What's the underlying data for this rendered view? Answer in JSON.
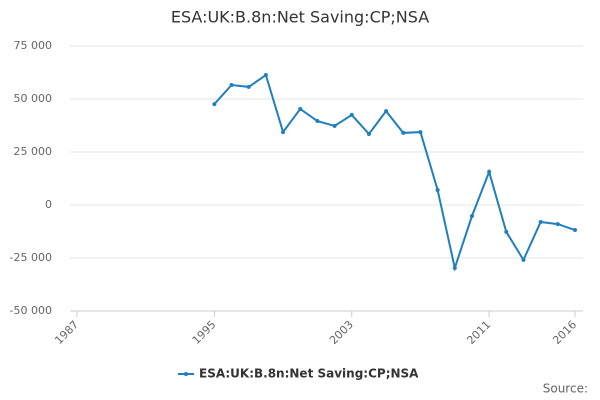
{
  "chart_data": {
    "type": "line",
    "title": "ESA:UK:B.8n:Net Saving:CP;NSA",
    "x": [
      1995,
      1996,
      1997,
      1998,
      1999,
      2000,
      2001,
      2002,
      2003,
      2004,
      2005,
      2006,
      2007,
      2008,
      2009,
      2010,
      2011,
      2012,
      2013,
      2014,
      2015,
      2016
    ],
    "series": [
      {
        "name": "ESA:UK:B.8n:Net Saving:CP;NSA",
        "color": "#1f7fbf",
        "values": [
          47600,
          56600,
          55700,
          61300,
          34400,
          45300,
          39600,
          37300,
          42500,
          33500,
          44300,
          34000,
          34400,
          7100,
          -29700,
          -5200,
          15600,
          -12700,
          -25900,
          -8000,
          -9000,
          -11800
        ]
      }
    ],
    "xlim": [
      1987,
      2016
    ],
    "xticks": [
      1987,
      1995,
      2003,
      2011,
      2016
    ],
    "ylim": [
      -50000,
      75000
    ],
    "yticks": [
      {
        "value": -50000,
        "label": "-50 000"
      },
      {
        "value": -25000,
        "label": "-25 000"
      },
      {
        "value": 0,
        "label": "0"
      },
      {
        "value": 25000,
        "label": "25 000"
      },
      {
        "value": 50000,
        "label": "50 000"
      },
      {
        "value": 75000,
        "label": "75 000"
      }
    ],
    "grid": true,
    "legend": "bottom",
    "source": "Source:"
  }
}
